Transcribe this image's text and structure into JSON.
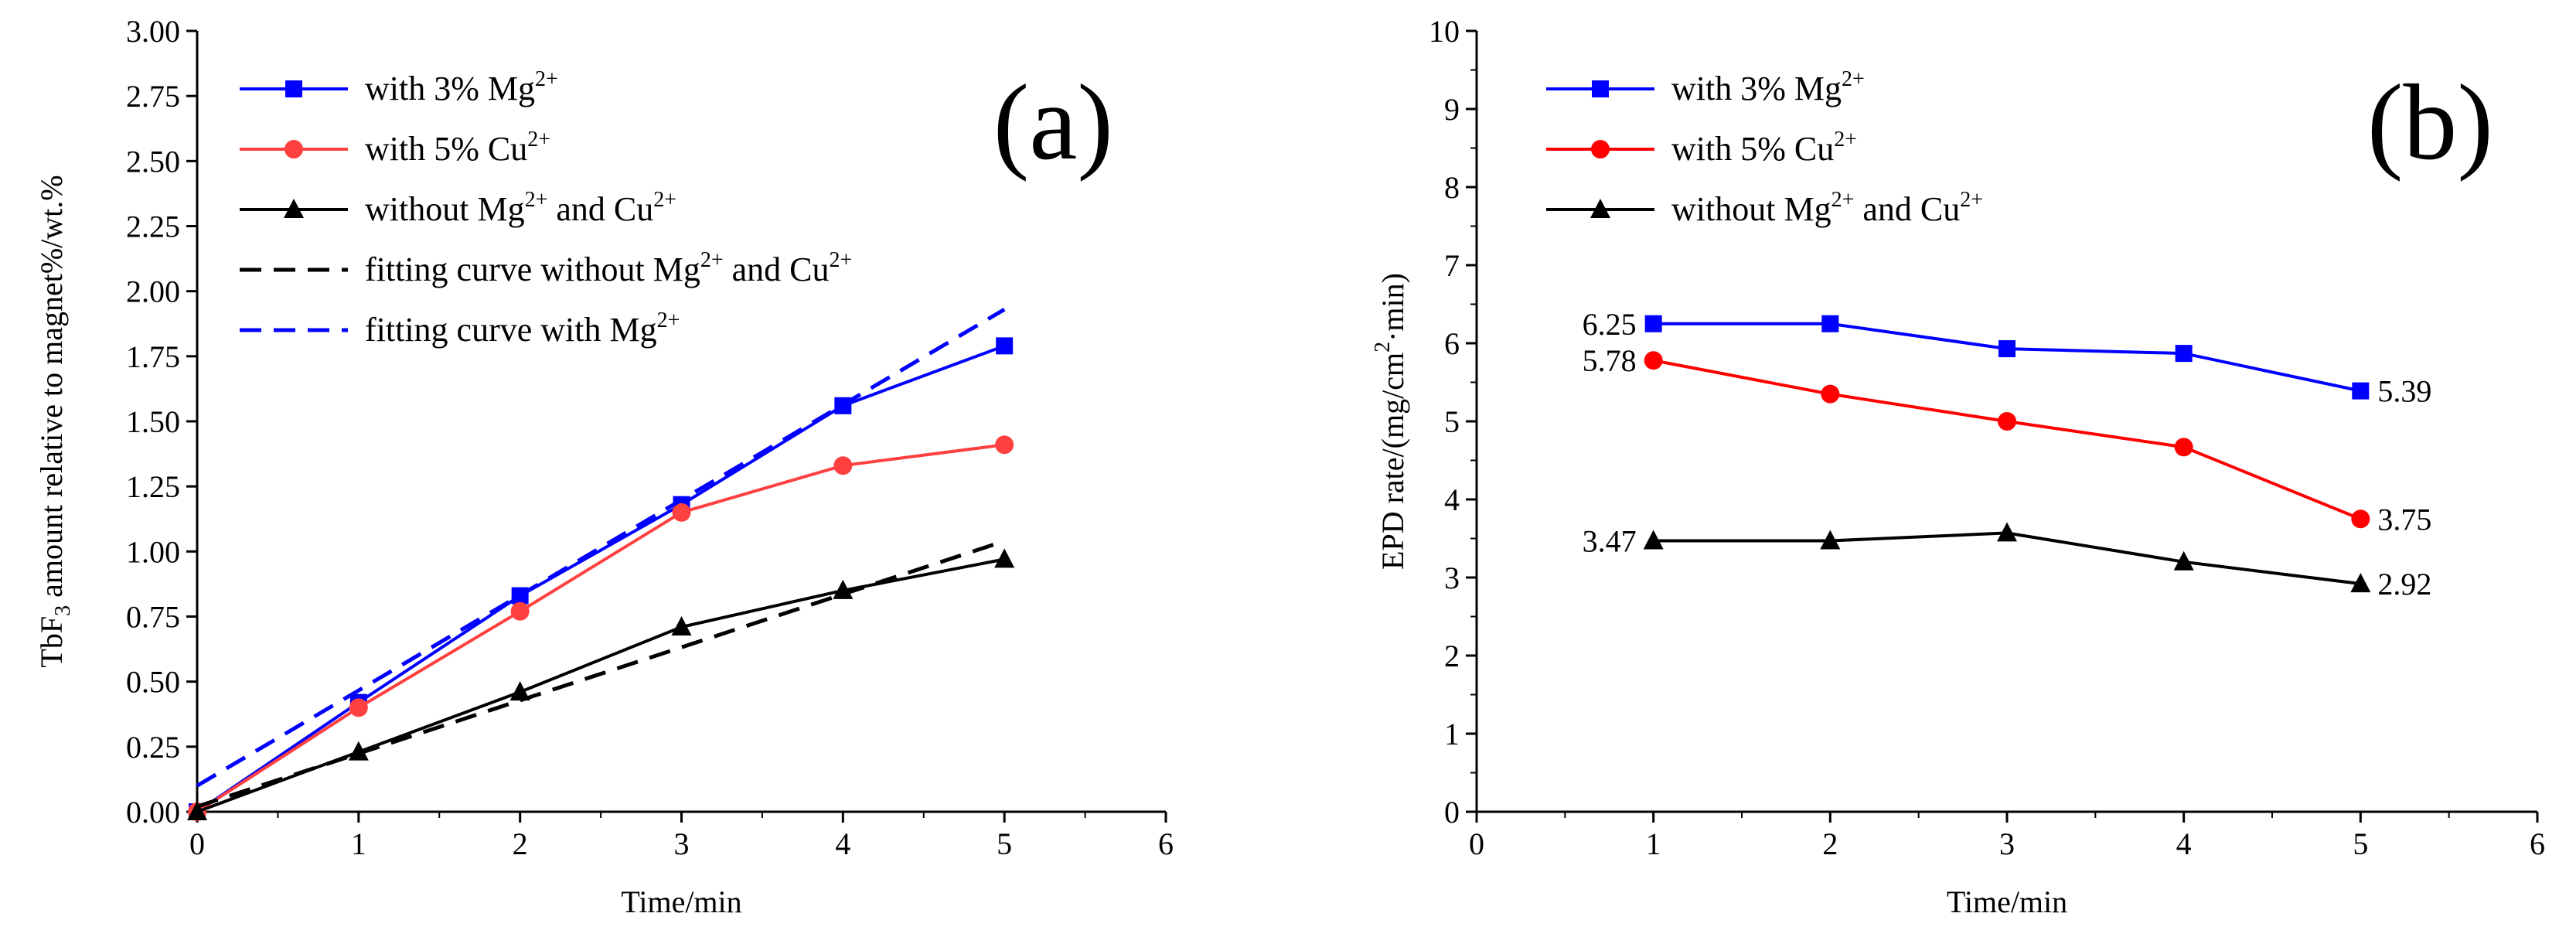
{
  "chart_data": [
    {
      "id": "a",
      "type": "line",
      "panel_label": "(a)",
      "xlabel": "Time/min",
      "ylabel_parts": [
        "TbF",
        "3",
        " amount relative to magnet%/wt.%"
      ],
      "xlim": [
        0,
        6
      ],
      "ylim": [
        0,
        3
      ],
      "x_ticks": [
        "0",
        "1",
        "2",
        "3",
        "4",
        "5",
        "6"
      ],
      "y_ticks": [
        "0.00",
        "0.25",
        "0.50",
        "0.75",
        "1.00",
        "1.25",
        "1.50",
        "1.75",
        "2.00",
        "2.25",
        "2.50",
        "2.75",
        "3.00"
      ],
      "legend_position": "top-left",
      "series": [
        {
          "name": "with 3% Mg2+",
          "legend_parts": [
            "with 3% Mg",
            "2+"
          ],
          "color": "#0000ff",
          "marker": "square",
          "dash": false,
          "x": [
            0,
            1,
            2,
            3,
            4,
            5
          ],
          "y": [
            0.0,
            0.42,
            0.83,
            1.18,
            1.56,
            1.79
          ]
        },
        {
          "name": "with 5% Cu2+",
          "legend_parts": [
            "with 5% Cu",
            "2+"
          ],
          "color": "#ff4040",
          "marker": "circle",
          "dash": false,
          "x": [
            0,
            1,
            2,
            3,
            4,
            5
          ],
          "y": [
            0.0,
            0.4,
            0.77,
            1.15,
            1.33,
            1.41
          ]
        },
        {
          "name": "without Mg2+ and Cu2+",
          "legend_parts": [
            "without Mg",
            "2+",
            " and Cu",
            "2+"
          ],
          "color": "#000000",
          "marker": "triangle",
          "dash": false,
          "x": [
            0,
            1,
            2,
            3,
            4,
            5
          ],
          "y": [
            0.0,
            0.23,
            0.46,
            0.71,
            0.85,
            0.97
          ]
        },
        {
          "name": "fitting curve without Mg2+ and Cu2+",
          "legend_parts": [
            "fitting curve without Mg",
            "2+",
            " and Cu",
            "2+"
          ],
          "color": "#000000",
          "marker": "none",
          "dash": true,
          "x": [
            0,
            5
          ],
          "y": [
            0.02,
            1.04
          ]
        },
        {
          "name": "fitting curve with Mg2+",
          "legend_parts": [
            "fitting curve with Mg",
            "2+"
          ],
          "color": "#0000ff",
          "marker": "none",
          "dash": true,
          "x": [
            0,
            5
          ],
          "y": [
            0.1,
            1.93
          ]
        }
      ]
    },
    {
      "id": "b",
      "type": "line",
      "panel_label": "(b)",
      "xlabel": "Time/min",
      "ylabel_parts": [
        "EPD rate/(mg/cm",
        "2",
        "·min)"
      ],
      "xlim": [
        0,
        6
      ],
      "ylim": [
        0,
        10
      ],
      "x_ticks": [
        "0",
        "1",
        "2",
        "3",
        "4",
        "5",
        "6"
      ],
      "y_ticks": [
        "0",
        "1",
        "2",
        "3",
        "4",
        "5",
        "6",
        "7",
        "8",
        "9",
        "10"
      ],
      "legend_position": "top-left",
      "series": [
        {
          "name": "with 3% Mg2+",
          "legend_parts": [
            "with 3% Mg",
            "2+"
          ],
          "color": "#0000ff",
          "marker": "square",
          "dash": false,
          "x": [
            1,
            2,
            3,
            4,
            5
          ],
          "y": [
            6.25,
            6.25,
            5.93,
            5.87,
            5.39
          ]
        },
        {
          "name": "with 5% Cu2+",
          "legend_parts": [
            "with 5% Cu",
            "2+"
          ],
          "color": "#ff0000",
          "marker": "circle",
          "dash": false,
          "x": [
            1,
            2,
            3,
            4,
            5
          ],
          "y": [
            5.78,
            5.35,
            5.0,
            4.67,
            3.75
          ]
        },
        {
          "name": "without Mg2+ and Cu2+",
          "legend_parts": [
            "without Mg",
            "2+",
            " and Cu",
            "2+"
          ],
          "color": "#000000",
          "marker": "triangle",
          "dash": false,
          "x": [
            1,
            2,
            3,
            4,
            5
          ],
          "y": [
            3.47,
            3.47,
            3.57,
            3.2,
            2.92
          ]
        }
      ],
      "annotations": [
        {
          "text": "6.25",
          "x": 1,
          "y": 6.25,
          "side": "left"
        },
        {
          "text": "5.78",
          "x": 1,
          "y": 5.78,
          "side": "left"
        },
        {
          "text": "3.47",
          "x": 1,
          "y": 3.47,
          "side": "left"
        },
        {
          "text": "5.39",
          "x": 5,
          "y": 5.39,
          "side": "right"
        },
        {
          "text": "3.75",
          "x": 5,
          "y": 3.75,
          "side": "right"
        },
        {
          "text": "2.92",
          "x": 5,
          "y": 2.92,
          "side": "right"
        }
      ]
    }
  ]
}
